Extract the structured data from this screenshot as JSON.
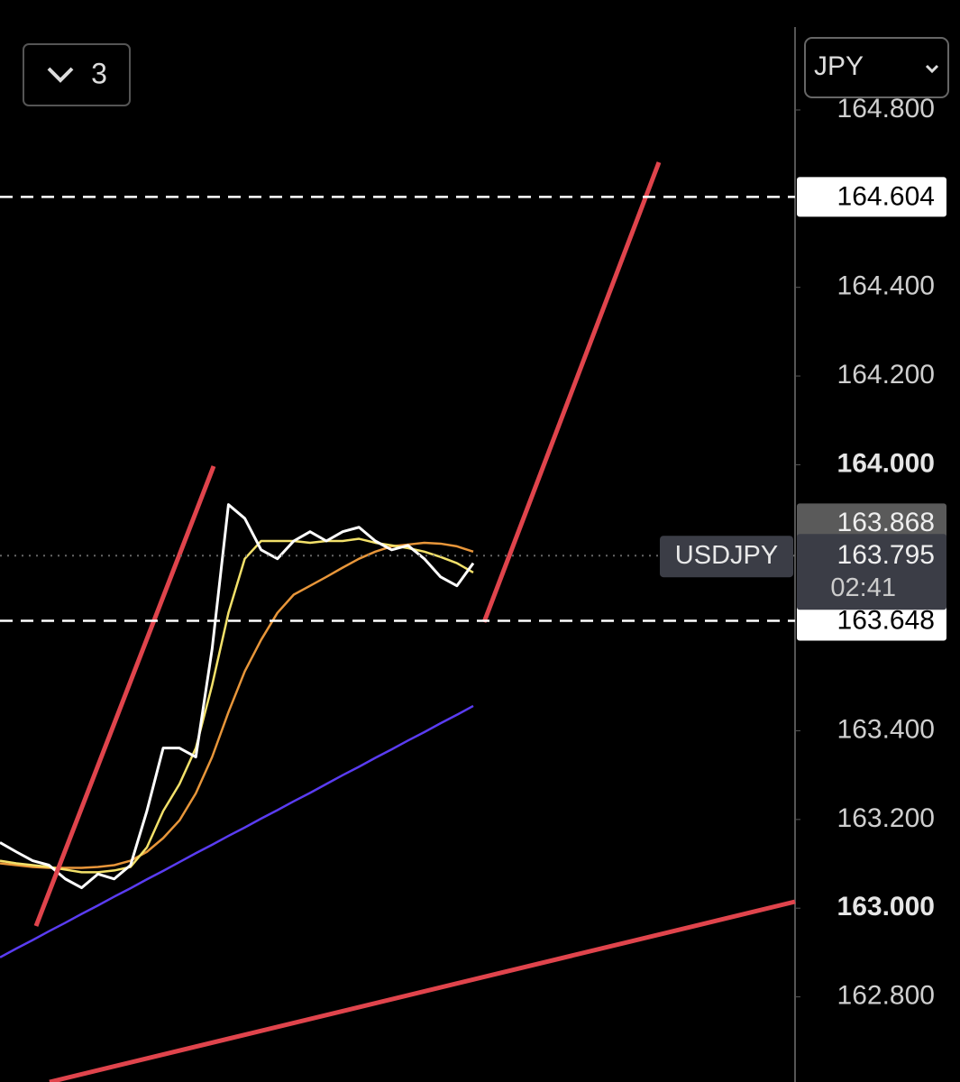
{
  "toolbar": {
    "count": "3"
  },
  "currency": "JPY",
  "chart_data": {
    "type": "line",
    "symbol": "USDJPY",
    "countdown": "02:41",
    "ylim": [
      162.608,
      165.048
    ],
    "yticks": [
      {
        "value": 164.8,
        "label": "164.800"
      },
      {
        "value": 164.4,
        "label": "164.400"
      },
      {
        "value": 164.2,
        "label": "164.200"
      },
      {
        "value": 164.0,
        "label": "164.000"
      },
      {
        "value": 163.4,
        "label": "163.400"
      },
      {
        "value": 163.2,
        "label": "163.200"
      },
      {
        "value": 163.0,
        "label": "163.000"
      },
      {
        "value": 162.8,
        "label": "162.800"
      }
    ],
    "upper_level": 164.604,
    "lower_level": 163.648,
    "high_marker": 163.868,
    "last_price": 163.795,
    "categories": [
      null,
      null,
      null,
      null,
      null,
      null,
      null,
      null,
      null,
      null,
      null,
      null,
      null,
      null,
      null,
      null,
      null,
      null,
      null,
      null,
      null,
      null,
      null,
      null,
      null,
      null,
      null,
      null,
      null,
      null
    ],
    "series": [
      {
        "color": "#5a3cf2",
        "values": [
          162.889,
          162.909,
          162.928,
          162.948,
          162.967,
          162.987,
          163.006,
          163.026,
          163.045,
          163.065,
          163.084,
          163.104,
          163.124,
          163.143,
          163.163,
          163.182,
          163.202,
          163.221,
          163.241,
          163.26,
          163.28,
          163.3,
          163.319,
          163.339,
          163.358,
          163.378,
          163.397,
          163.417,
          163.436,
          163.456
        ]
      },
      {
        "color": "#e8963a",
        "values": [
          163.101,
          163.097,
          163.093,
          163.091,
          163.091,
          163.091,
          163.093,
          163.097,
          163.107,
          163.127,
          163.158,
          163.198,
          163.259,
          163.341,
          163.442,
          163.534,
          163.605,
          163.666,
          163.707,
          163.727,
          163.747,
          163.768,
          163.788,
          163.804,
          163.816,
          163.82,
          163.824,
          163.822,
          163.816,
          163.804
        ]
      },
      {
        "color": "#f3e16a",
        "values": [
          163.107,
          163.101,
          163.097,
          163.093,
          163.087,
          163.081,
          163.081,
          163.085,
          163.093,
          163.137,
          163.219,
          163.28,
          163.361,
          163.503,
          163.666,
          163.788,
          163.828,
          163.828,
          163.828,
          163.824,
          163.828,
          163.828,
          163.833,
          163.824,
          163.818,
          163.812,
          163.804,
          163.792,
          163.778,
          163.757
        ]
      },
      {
        "color": "#ffffff",
        "values": [
          163.148,
          163.127,
          163.107,
          163.097,
          163.066,
          163.046,
          163.077,
          163.066,
          163.097,
          163.219,
          163.361,
          163.361,
          163.341,
          163.585,
          163.91,
          163.879,
          163.808,
          163.788,
          163.828,
          163.849,
          163.828,
          163.849,
          163.859,
          163.828,
          163.808,
          163.818,
          163.788,
          163.747,
          163.727,
          163.778
        ]
      }
    ]
  }
}
